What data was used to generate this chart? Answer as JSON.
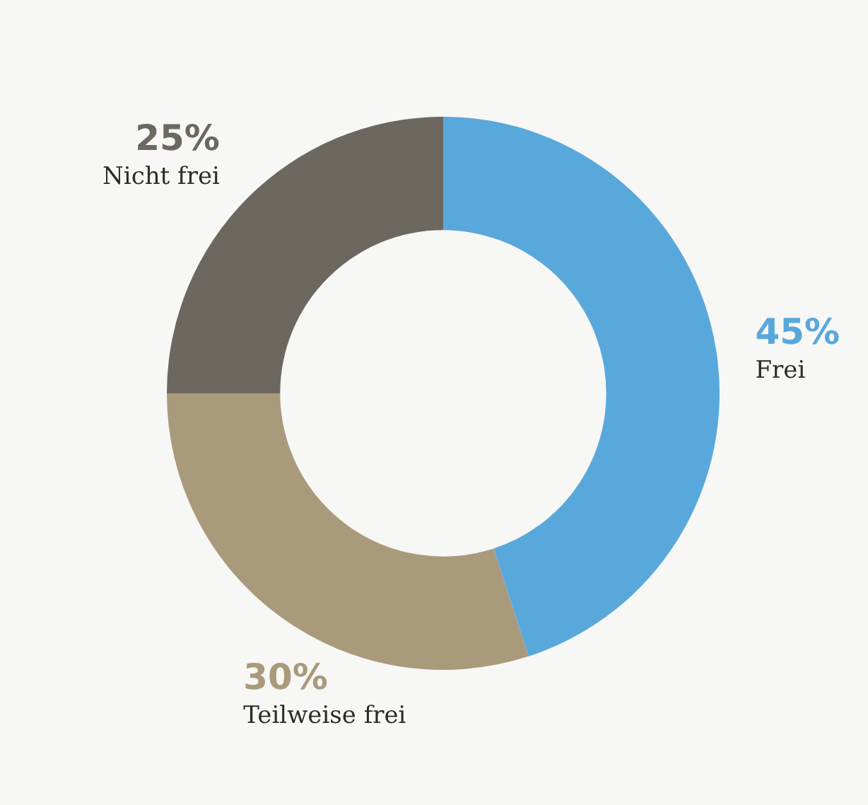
{
  "chart_data": {
    "type": "donut",
    "categories": [
      "Frei",
      "Teilweise frei",
      "Nicht frei"
    ],
    "values": [
      45,
      30,
      25
    ],
    "colors": [
      "#59a8dc",
      "#a99a7b",
      "#6c6860"
    ],
    "value_labels": [
      "45%",
      "30%",
      "25%"
    ],
    "legend": false
  }
}
